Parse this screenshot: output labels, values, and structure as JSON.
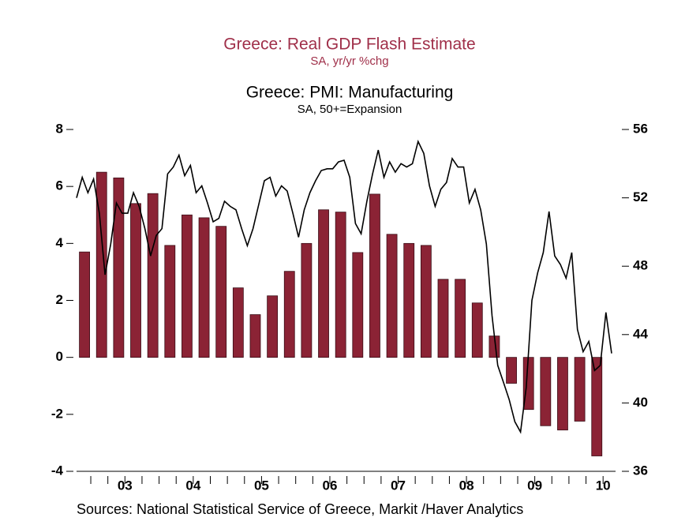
{
  "chart_data": {
    "type": "bar_line",
    "source": "Sources:  National Statistical Service of Greece, Markit /Haver Analytics",
    "year_labels": [
      "03",
      "04",
      "05",
      "06",
      "07",
      "08",
      "09",
      "10"
    ],
    "ylim": [
      -4,
      8
    ],
    "yticks": [
      -4,
      -2,
      0,
      2,
      4,
      6,
      8
    ],
    "y2lim": [
      36,
      56
    ],
    "y2ticks": [
      36,
      40,
      44,
      48,
      52,
      56
    ],
    "series": [
      {
        "name": "Greece: Real GDP Flash Estimate",
        "subtitle": "SA, yr/yr %chg",
        "type": "bar",
        "color": "#8b2335",
        "values": [
          3.7,
          6.5,
          6.3,
          5.4,
          5.75,
          3.93,
          5.0,
          4.9,
          4.6,
          2.44,
          1.5,
          2.16,
          3.02,
          4.0,
          5.18,
          5.1,
          3.68,
          5.73,
          4.32,
          4.0,
          3.93,
          2.74,
          2.74,
          1.91,
          0.75,
          -0.91,
          -1.83,
          -2.4,
          -2.55,
          -2.24,
          -3.46
        ]
      },
      {
        "name": "Greece: PMI: Manufacturing",
        "subtitle": "SA, 50+=Expansion",
        "type": "line",
        "color": "#000000",
        "axis": "y2",
        "values": [
          52.0,
          53.2,
          52.3,
          53.1,
          51.1,
          47.5,
          49.3,
          51.7,
          51.1,
          51.1,
          52.3,
          51.5,
          50.2,
          48.6,
          49.8,
          50.2,
          53.4,
          53.8,
          54.5,
          53.3,
          53.9,
          52.3,
          52.7,
          51.7,
          50.6,
          50.8,
          51.8,
          51.5,
          51.3,
          50.2,
          49.2,
          50.2,
          51.6,
          53.0,
          53.2,
          52.1,
          52.7,
          52.4,
          51.1,
          49.7,
          51.3,
          52.3,
          53.0,
          53.6,
          53.7,
          53.7,
          54.1,
          54.2,
          53.2,
          50.5,
          49.9,
          51.8,
          53.4,
          54.8,
          53.2,
          54.1,
          53.5,
          54.0,
          53.8,
          54.0,
          55.3,
          54.6,
          52.7,
          51.5,
          52.5,
          52.9,
          54.3,
          53.8,
          53.8,
          51.7,
          52.5,
          51.3,
          49.3,
          45.1,
          42.2,
          41.2,
          40.2,
          38.9,
          38.3,
          40.9,
          46.0,
          47.6,
          48.8,
          51.2,
          48.6,
          48.1,
          47.3,
          48.8,
          44.3,
          43.0,
          43.6,
          41.9,
          42.2,
          45.3,
          42.9
        ]
      }
    ]
  }
}
